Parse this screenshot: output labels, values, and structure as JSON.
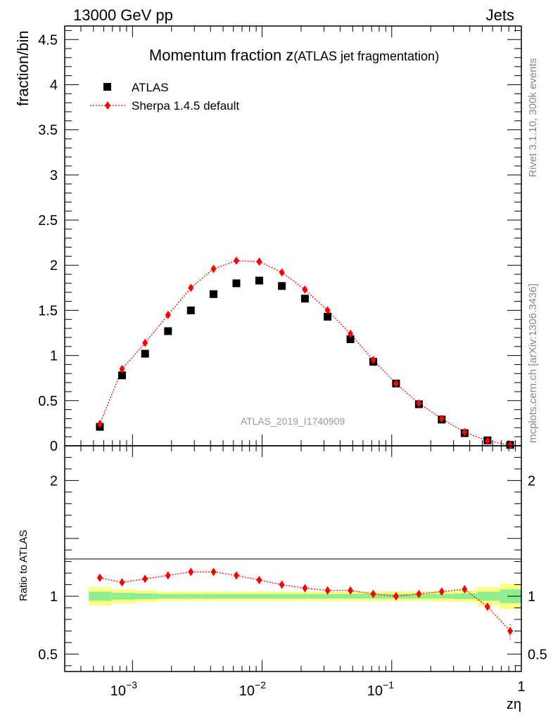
{
  "header": {
    "left": "13000 GeV pp",
    "right": "Jets"
  },
  "side": {
    "rivet": "Rivet 3.1.10,  300k events",
    "mcplots": "mcplots.cern.ch [arXiv:1306.3436]"
  },
  "chart_data": {
    "type": "scatter",
    "title_main": "Momentum fraction z",
    "title_sub": "(ATLAS jet fragmentation)",
    "analysis_label": "ATLAS_2019_I1740909",
    "xlabel": "zη",
    "xscale": "log",
    "xlim": [
      0.0003,
      1
    ],
    "x_tick_labels": [
      "10",
      "−3",
      "10",
      "−2",
      "10",
      "−1",
      "1"
    ],
    "main": {
      "ylabel": "fraction/bin",
      "ylim": [
        0,
        4.65
      ],
      "y_ticks": [
        0,
        0.5,
        1,
        1.5,
        2,
        2.5,
        3,
        3.5,
        4,
        4.5
      ],
      "y_tick_labels": [
        "0",
        "0.5",
        "1",
        "1.5",
        "2",
        "2.5",
        "3",
        "3.5",
        "4",
        "4.5"
      ],
      "series": [
        {
          "name": "ATLAS",
          "marker": "square",
          "color": "#000000",
          "x": [
            0.00056,
            0.00083,
            0.00125,
            0.00188,
            0.00282,
            0.00422,
            0.00633,
            0.0095,
            0.0142,
            0.0214,
            0.032,
            0.048,
            0.072,
            0.108,
            0.162,
            0.243,
            0.365,
            0.548,
            0.82
          ],
          "values": [
            0.21,
            0.78,
            1.02,
            1.27,
            1.5,
            1.68,
            1.8,
            1.83,
            1.77,
            1.63,
            1.43,
            1.18,
            0.93,
            0.69,
            0.46,
            0.29,
            0.14,
            0.06,
            0.01
          ]
        },
        {
          "name": "Sherpa 1.4.5 default",
          "marker": "diamond",
          "color": "#ff0000",
          "x": [
            0.00056,
            0.00083,
            0.00125,
            0.00188,
            0.00282,
            0.00422,
            0.00633,
            0.0095,
            0.0142,
            0.0214,
            0.032,
            0.048,
            0.072,
            0.108,
            0.162,
            0.243,
            0.365,
            0.548,
            0.82
          ],
          "values": [
            0.24,
            0.85,
            1.14,
            1.45,
            1.75,
            1.96,
            2.05,
            2.04,
            1.92,
            1.73,
            1.5,
            1.24,
            0.95,
            0.69,
            0.47,
            0.3,
            0.15,
            0.055,
            0.007
          ]
        }
      ]
    },
    "ratio": {
      "ylabel": "Ratio to ATLAS",
      "ylim": [
        0.35,
        2.3
      ],
      "y_ticks": [
        0.5,
        1,
        2
      ],
      "y_tick_labels": [
        "0.5",
        "1",
        "2"
      ],
      "x": [
        0.00056,
        0.00083,
        0.00125,
        0.00188,
        0.00282,
        0.00422,
        0.00633,
        0.0095,
        0.0142,
        0.0214,
        0.032,
        0.048,
        0.072,
        0.108,
        0.162,
        0.243,
        0.365,
        0.548,
        0.82
      ],
      "values": [
        1.16,
        1.12,
        1.15,
        1.18,
        1.21,
        1.21,
        1.18,
        1.14,
        1.1,
        1.07,
        1.05,
        1.05,
        1.02,
        1.0,
        1.02,
        1.04,
        1.06,
        0.91,
        0.7
      ],
      "err_low": [
        0,
        0,
        0,
        0,
        0,
        0,
        0,
        0,
        0,
        0,
        0,
        0,
        0,
        0,
        0,
        0,
        0,
        0,
        0.08
      ],
      "err_high": [
        0,
        0,
        0,
        0,
        0,
        0,
        0,
        0,
        0,
        0,
        0,
        0,
        0,
        0,
        0,
        0,
        0,
        0,
        0.06
      ],
      "band_edges": [
        0.00046,
        0.00069,
        0.00104,
        0.00156,
        0.00234,
        0.00351,
        0.00527,
        0.0079,
        0.0118,
        0.0178,
        0.0267,
        0.04,
        0.06,
        0.09,
        0.135,
        0.203,
        0.304,
        0.456,
        0.684,
        1.0
      ],
      "band_stat": [
        0.04,
        0.03,
        0.025,
        0.02,
        0.02,
        0.02,
        0.02,
        0.02,
        0.02,
        0.02,
        0.02,
        0.02,
        0.02,
        0.02,
        0.02,
        0.02,
        0.025,
        0.04,
        0.06
      ],
      "band_total": [
        0.08,
        0.06,
        0.05,
        0.04,
        0.04,
        0.04,
        0.04,
        0.04,
        0.04,
        0.04,
        0.04,
        0.04,
        0.04,
        0.04,
        0.04,
        0.045,
        0.05,
        0.08,
        0.11
      ],
      "band_stat_color": "#90ee90",
      "band_total_color": "#ffff80"
    }
  }
}
